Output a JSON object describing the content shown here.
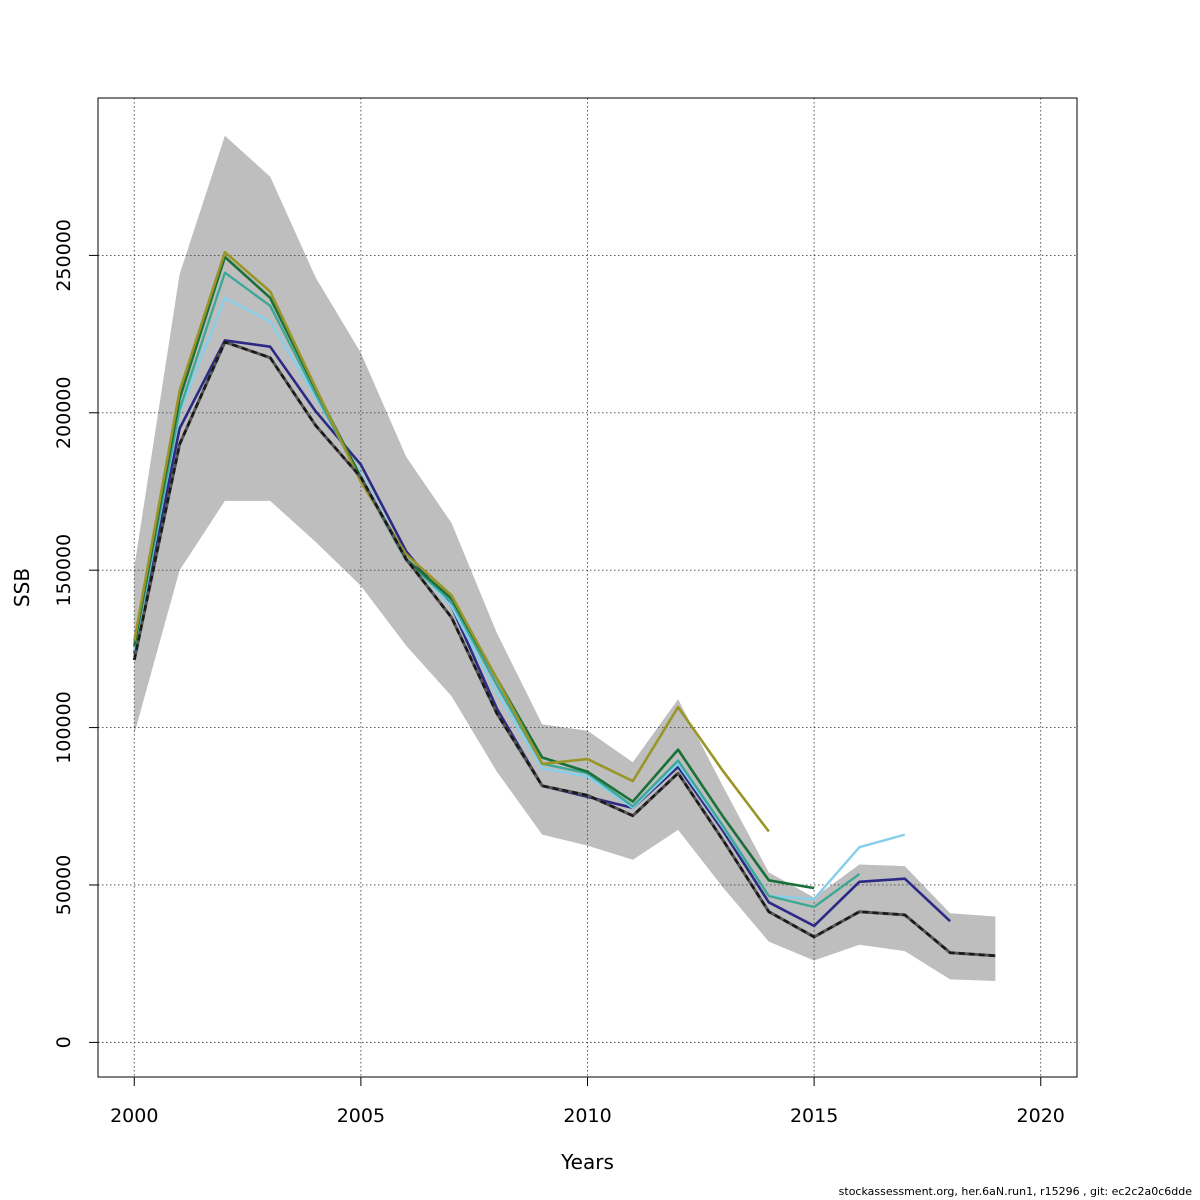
{
  "chart_data": {
    "type": "line",
    "xlabel": "Years",
    "ylabel": "SSB",
    "xlim": [
      1999.2,
      2020.8
    ],
    "ylim": [
      -11000,
      300000
    ],
    "x_ticks": [
      2000,
      2005,
      2010,
      2015,
      2020
    ],
    "y_ticks": [
      0,
      50000,
      100000,
      150000,
      200000,
      250000
    ],
    "grid": true,
    "confidence_band": {
      "color": "#bebebe",
      "x": [
        2000,
        2001,
        2002,
        2003,
        2004,
        2005,
        2006,
        2007,
        2008,
        2009,
        2010,
        2011,
        2012,
        2013,
        2014,
        2015,
        2016,
        2017,
        2018,
        2019
      ],
      "upper": [
        151000,
        244000,
        288000,
        275000,
        243000,
        219000,
        186000,
        165000,
        130000,
        101000,
        99000,
        89000,
        109000,
        81000,
        54000,
        46000,
        56500,
        56000,
        41000,
        40000
      ],
      "lower": [
        98000,
        150000,
        172000,
        172000,
        159000,
        145000,
        126000,
        110000,
        86000,
        66000,
        62500,
        58000,
        67500,
        49000,
        32000,
        26000,
        31000,
        29000,
        20000,
        19500
      ]
    },
    "series": [
      {
        "color": "#1a1a1a",
        "dashed": true,
        "width": 2.6,
        "x": [
          2000,
          2001,
          2002,
          2003,
          2004,
          2005,
          2006,
          2007,
          2008,
          2009,
          2010,
          2011,
          2012,
          2013,
          2014,
          2015,
          2016,
          2017,
          2018,
          2019
        ],
        "values": [
          121500,
          190000,
          222500,
          217500,
          196000,
          179500,
          153500,
          135000,
          104500,
          81500,
          78500,
          72000,
          85500,
          64000,
          41500,
          33500,
          41500,
          40500,
          28500,
          27500
        ]
      },
      {
        "color": "#2c2a86",
        "width": 2.6,
        "x": [
          2000,
          2001,
          2002,
          2003,
          2004,
          2005,
          2006,
          2007,
          2008,
          2009,
          2010,
          2011,
          2012,
          2013,
          2014,
          2015,
          2016,
          2017,
          2018
        ],
        "values": [
          123500,
          195000,
          223000,
          221000,
          200500,
          183500,
          156000,
          138500,
          106000,
          81500,
          78000,
          74500,
          87500,
          67000,
          44500,
          37000,
          51000,
          52000,
          38500
        ]
      },
      {
        "color": "#87ceeb",
        "width": 2.4,
        "x": [
          2000,
          2001,
          2002,
          2003,
          2004,
          2005,
          2006,
          2007,
          2008,
          2009,
          2010,
          2011,
          2012,
          2013,
          2014,
          2015,
          2016,
          2017
        ],
        "values": [
          124500,
          200000,
          236500,
          229000,
          205000,
          180500,
          154000,
          138500,
          111000,
          87000,
          84500,
          74500,
          88500,
          68000,
          46500,
          45500,
          62000,
          66000
        ]
      },
      {
        "color": "#3ea896",
        "width": 2.4,
        "x": [
          2000,
          2001,
          2002,
          2003,
          2004,
          2005,
          2006,
          2007,
          2008,
          2009,
          2010,
          2011,
          2012,
          2013,
          2014,
          2015,
          2016
        ],
        "values": [
          125500,
          201000,
          244500,
          234000,
          206000,
          179000,
          153000,
          140000,
          113500,
          88500,
          85500,
          75000,
          89500,
          68500,
          46500,
          43000,
          53500
        ]
      },
      {
        "color": "#1a7038",
        "width": 2.6,
        "x": [
          2000,
          2001,
          2002,
          2003,
          2004,
          2005,
          2006,
          2007,
          2008,
          2009,
          2010,
          2011,
          2012,
          2013,
          2014,
          2015
        ],
        "values": [
          126000,
          204500,
          249500,
          236500,
          207500,
          179500,
          153500,
          141000,
          115500,
          90500,
          86000,
          76500,
          93000,
          71500,
          51500,
          49000
        ]
      },
      {
        "color": "#9b9528",
        "width": 2.6,
        "x": [
          2000,
          2001,
          2002,
          2003,
          2004,
          2005,
          2006,
          2007,
          2008,
          2009,
          2010,
          2011,
          2012,
          2013,
          2014
        ],
        "values": [
          127500,
          207000,
          251000,
          238500,
          208000,
          178000,
          155000,
          142000,
          115500,
          88500,
          90000,
          83000,
          106500,
          86000,
          67000
        ]
      }
    ]
  },
  "footer_text": "stockassessment.org, her.6aN.run1, r15296 , git: ec2c2a0c6dde"
}
